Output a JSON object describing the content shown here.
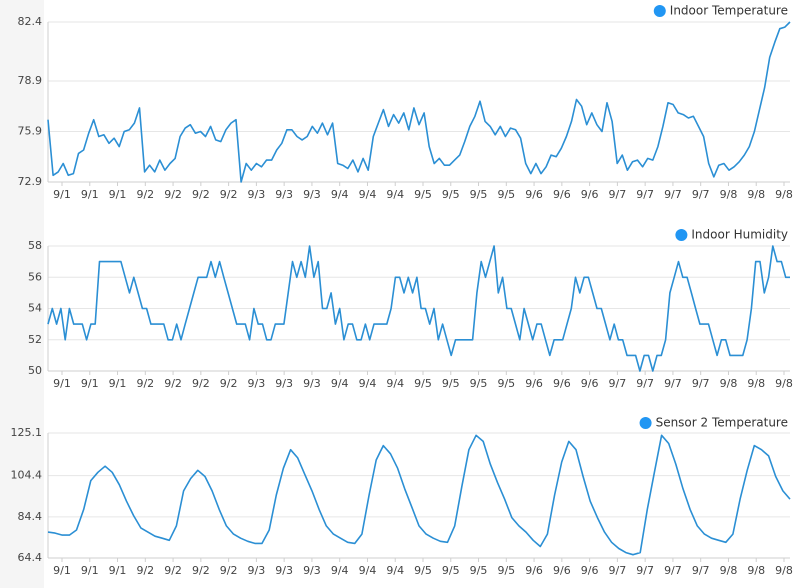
{
  "chart_data": [
    {
      "type": "line",
      "ylim": [
        72.9,
        82.4
      ],
      "yticks": [
        72.9,
        75.9,
        78.9,
        82.4
      ],
      "grid": true,
      "legend": "top-right",
      "xtick_labels": [
        "9/1",
        "9/1",
        "9/1",
        "9/2",
        "9/2",
        "9/2",
        "9/2",
        "9/3",
        "9/3",
        "9/3",
        "9/4",
        "9/4",
        "9/4",
        "9/5",
        "9/5",
        "9/5",
        "9/5",
        "9/6",
        "9/6",
        "9/6",
        "9/7",
        "9/7",
        "9/7",
        "9/7",
        "9/8",
        "9/8",
        "9/8"
      ],
      "series": [
        {
          "name": "Indoor Temperature",
          "color": "#2b8fd4",
          "values": [
            76.6,
            73.3,
            73.5,
            74.0,
            73.3,
            73.4,
            74.6,
            74.8,
            75.8,
            76.6,
            75.6,
            75.7,
            75.2,
            75.5,
            75.0,
            75.9,
            76.0,
            76.4,
            77.3,
            73.5,
            73.9,
            73.5,
            74.2,
            73.6,
            74.0,
            74.3,
            75.6,
            76.1,
            76.3,
            75.8,
            75.9,
            75.6,
            76.2,
            75.4,
            75.3,
            76.0,
            76.4,
            76.6,
            72.9,
            74.0,
            73.6,
            74.0,
            73.8,
            74.2,
            74.2,
            74.8,
            75.2,
            76.0,
            76.0,
            75.6,
            75.4,
            75.6,
            76.2,
            75.8,
            76.4,
            75.7,
            76.4,
            74.0,
            73.9,
            73.7,
            74.2,
            73.5,
            74.3,
            73.6,
            75.6,
            76.4,
            77.2,
            76.2,
            76.9,
            76.4,
            77.0,
            76.0,
            77.3,
            76.3,
            77.0,
            75.0,
            74.0,
            74.3,
            73.9,
            73.9,
            74.2,
            74.5,
            75.3,
            76.2,
            76.8,
            77.7,
            76.5,
            76.2,
            75.7,
            76.2,
            75.6,
            76.1,
            76.0,
            75.5,
            74.0,
            73.4,
            74.0,
            73.4,
            73.8,
            74.5,
            74.4,
            74.9,
            75.6,
            76.5,
            77.8,
            77.4,
            76.3,
            77.0,
            76.3,
            75.9,
            77.6,
            76.5,
            74.0,
            74.5,
            73.6,
            74.1,
            74.2,
            73.8,
            74.3,
            74.2,
            75.0,
            76.2,
            77.6,
            77.5,
            77.0,
            76.9,
            76.7,
            76.8,
            76.2,
            75.6,
            74.0,
            73.2,
            73.9,
            74.0,
            73.6,
            73.8,
            74.1,
            74.5,
            75.0,
            75.9,
            77.2,
            78.5,
            80.3,
            81.2,
            82.0,
            82.1,
            82.4
          ]
        }
      ]
    },
    {
      "type": "line",
      "ylim": [
        50,
        58
      ],
      "yticks": [
        50,
        52,
        54,
        56,
        58
      ],
      "grid": true,
      "legend": "top-right",
      "xtick_labels": [
        "9/1",
        "9/1",
        "9/1",
        "9/2",
        "9/2",
        "9/2",
        "9/2",
        "9/3",
        "9/3",
        "9/3",
        "9/4",
        "9/4",
        "9/4",
        "9/5",
        "9/5",
        "9/5",
        "9/5",
        "9/6",
        "9/6",
        "9/6",
        "9/7",
        "9/7",
        "9/7",
        "9/7",
        "9/8",
        "9/8",
        "9/8"
      ],
      "series": [
        {
          "name": "Indoor Humidity",
          "color": "#2b8fd4",
          "values": [
            53,
            54,
            53,
            54,
            52,
            54,
            53,
            53,
            53,
            52,
            53,
            53,
            57,
            57,
            57,
            57,
            57,
            57,
            56,
            55,
            56,
            55,
            54,
            54,
            53,
            53,
            53,
            53,
            52,
            52,
            53,
            52,
            53,
            54,
            55,
            56,
            56,
            56,
            57,
            56,
            57,
            56,
            55,
            54,
            53,
            53,
            53,
            52,
            54,
            53,
            53,
            52,
            52,
            53,
            53,
            53,
            55,
            57,
            56,
            57,
            56,
            58,
            56,
            57,
            54,
            54,
            55,
            53,
            54,
            52,
            53,
            53,
            52,
            52,
            53,
            52,
            53,
            53,
            53,
            53,
            54,
            56,
            56,
            55,
            56,
            55,
            56,
            54,
            54,
            53,
            54,
            52,
            53,
            52,
            51,
            52,
            52,
            52,
            52,
            52,
            55,
            57,
            56,
            57,
            58,
            55,
            56,
            54,
            54,
            53,
            52,
            54,
            53,
            52,
            53,
            53,
            52,
            51,
            52,
            52,
            52,
            53,
            54,
            56,
            55,
            56,
            56,
            55,
            54,
            54,
            53,
            52,
            53,
            52,
            52,
            51,
            51,
            51,
            50,
            51,
            51,
            50,
            51,
            51,
            52,
            55,
            56,
            57,
            56,
            56,
            55,
            54,
            53,
            53,
            53,
            52,
            51,
            52,
            52,
            51,
            51,
            51,
            51,
            52,
            54,
            57,
            57,
            55,
            56,
            58,
            57,
            57,
            56,
            56
          ]
        }
      ]
    },
    {
      "type": "line",
      "ylim": [
        64.4,
        125.1
      ],
      "yticks": [
        64.4,
        84.4,
        104.4,
        125.1
      ],
      "grid": true,
      "legend": "top-right",
      "xtick_labels": [
        "9/1",
        "9/1",
        "9/1",
        "9/2",
        "9/2",
        "9/2",
        "9/2",
        "9/3",
        "9/3",
        "9/3",
        "9/4",
        "9/4",
        "9/4",
        "9/5",
        "9/5",
        "9/5",
        "9/5",
        "9/6",
        "9/6",
        "9/6",
        "9/7",
        "9/7",
        "9/7",
        "9/7",
        "9/8",
        "9/8",
        "9/8"
      ],
      "series": [
        {
          "name": "Sensor 2 Temperature",
          "color": "#2b8fd4",
          "values": [
            77,
            76.5,
            75.5,
            75.5,
            78,
            88,
            102,
            106,
            109,
            106,
            100,
            92,
            85,
            79,
            77,
            75,
            74,
            73,
            80,
            97,
            103,
            107,
            104,
            97,
            88,
            80,
            76,
            74,
            72.5,
            71.5,
            71.5,
            78,
            95,
            108,
            117,
            113,
            105,
            97,
            88,
            80,
            76,
            74,
            72,
            71.5,
            76,
            95,
            112,
            119,
            115,
            108,
            98,
            89,
            80,
            76,
            74,
            72.5,
            72,
            80,
            99,
            117,
            124,
            121,
            110,
            101,
            93,
            84,
            80,
            77,
            73,
            70,
            76,
            95,
            111,
            121,
            117,
            104,
            92,
            84,
            77,
            72,
            69,
            67,
            66,
            67,
            88,
            106,
            124,
            120,
            110,
            98,
            88,
            80,
            76,
            74,
            73,
            72,
            76,
            93,
            107,
            119,
            117,
            114,
            104,
            97,
            93
          ]
        }
      ]
    }
  ]
}
